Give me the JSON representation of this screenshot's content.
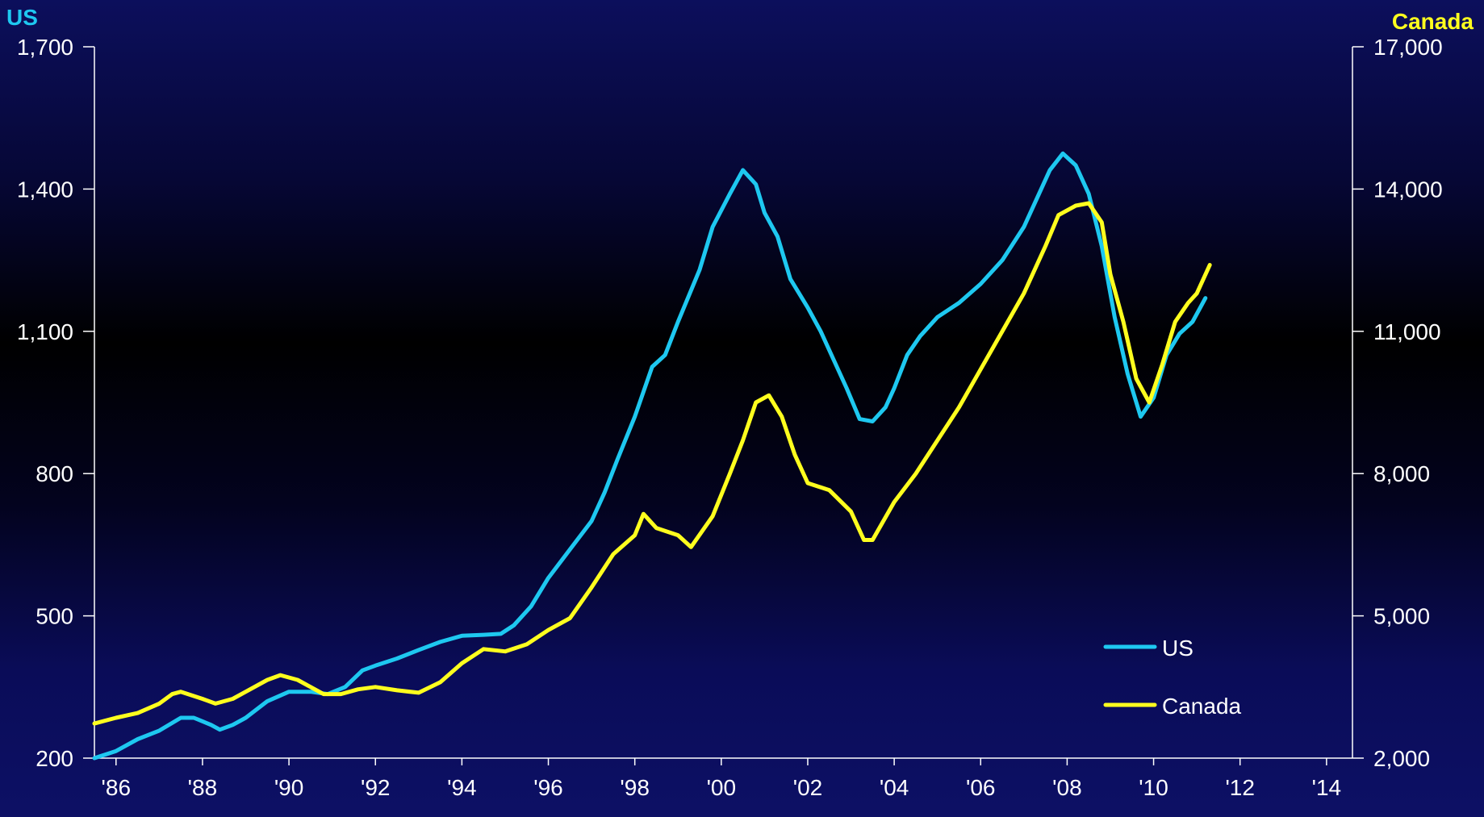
{
  "chart_data": {
    "type": "line",
    "left_axis_title": "US",
    "right_axis_title": "Canada",
    "left_ylim": [
      200,
      1700
    ],
    "left_yticks": [
      "1,700",
      "1,400",
      "1,100",
      "800",
      "500",
      "200"
    ],
    "left_ytick_values": [
      1700,
      1400,
      1100,
      800,
      500,
      200
    ],
    "right_ylim": [
      2000,
      17000
    ],
    "right_yticks": [
      "17,000",
      "14,000",
      "11,000",
      "8,000",
      "5,000",
      "2,000"
    ],
    "right_ytick_values": [
      17000,
      14000,
      11000,
      8000,
      5000,
      2000
    ],
    "xlim": [
      1985.5,
      2014.6
    ],
    "xtick_labels": [
      "'86",
      "'88",
      "'90",
      "'92",
      "'94",
      "'96",
      "'98",
      "'00",
      "'02",
      "'04",
      "'06",
      "'08",
      "'10",
      "'12",
      "'14"
    ],
    "xtick_values": [
      1986,
      1988,
      1990,
      1992,
      1994,
      1996,
      1998,
      2000,
      2002,
      2004,
      2006,
      2008,
      2010,
      2012,
      2014
    ],
    "legend_position": "bottom-right",
    "series": [
      {
        "name": "US",
        "axis": "left",
        "color": "#1ec8f0",
        "points": [
          [
            1985.5,
            200
          ],
          [
            1986.0,
            215
          ],
          [
            1986.5,
            240
          ],
          [
            1987.0,
            258
          ],
          [
            1987.5,
            285
          ],
          [
            1987.8,
            285
          ],
          [
            1988.2,
            270
          ],
          [
            1988.4,
            260
          ],
          [
            1988.7,
            270
          ],
          [
            1989.0,
            285
          ],
          [
            1989.5,
            320
          ],
          [
            1990.0,
            340
          ],
          [
            1990.5,
            340
          ],
          [
            1990.9,
            335
          ],
          [
            1991.3,
            350
          ],
          [
            1991.7,
            385
          ],
          [
            1992.0,
            395
          ],
          [
            1992.5,
            410
          ],
          [
            1993.0,
            428
          ],
          [
            1993.5,
            445
          ],
          [
            1994.0,
            458
          ],
          [
            1994.5,
            460
          ],
          [
            1994.9,
            462
          ],
          [
            1995.2,
            480
          ],
          [
            1995.6,
            520
          ],
          [
            1996.0,
            580
          ],
          [
            1996.5,
            640
          ],
          [
            1997.0,
            700
          ],
          [
            1997.3,
            760
          ],
          [
            1997.6,
            830
          ],
          [
            1998.0,
            920
          ],
          [
            1998.4,
            1025
          ],
          [
            1998.7,
            1050
          ],
          [
            1999.0,
            1120
          ],
          [
            1999.5,
            1230
          ],
          [
            1999.8,
            1320
          ],
          [
            2000.2,
            1390
          ],
          [
            2000.5,
            1440
          ],
          [
            2000.8,
            1410
          ],
          [
            2001.0,
            1350
          ],
          [
            2001.3,
            1300
          ],
          [
            2001.6,
            1210
          ],
          [
            2002.0,
            1150
          ],
          [
            2002.3,
            1100
          ],
          [
            2002.6,
            1040
          ],
          [
            2002.9,
            980
          ],
          [
            2003.2,
            915
          ],
          [
            2003.5,
            910
          ],
          [
            2003.8,
            940
          ],
          [
            2004.0,
            980
          ],
          [
            2004.3,
            1050
          ],
          [
            2004.6,
            1090
          ],
          [
            2005.0,
            1130
          ],
          [
            2005.5,
            1160
          ],
          [
            2006.0,
            1200
          ],
          [
            2006.5,
            1250
          ],
          [
            2007.0,
            1320
          ],
          [
            2007.3,
            1380
          ],
          [
            2007.6,
            1440
          ],
          [
            2007.9,
            1475
          ],
          [
            2008.2,
            1450
          ],
          [
            2008.5,
            1390
          ],
          [
            2008.8,
            1280
          ],
          [
            2009.1,
            1130
          ],
          [
            2009.4,
            1010
          ],
          [
            2009.7,
            920
          ],
          [
            2010.0,
            960
          ],
          [
            2010.3,
            1050
          ],
          [
            2010.6,
            1095
          ],
          [
            2010.9,
            1120
          ],
          [
            2011.2,
            1170
          ]
        ]
      },
      {
        "name": "Canada",
        "axis": "right",
        "color": "#ffff1e",
        "points": [
          [
            1985.5,
            2730
          ],
          [
            1986.0,
            2850
          ],
          [
            1986.5,
            2950
          ],
          [
            1987.0,
            3150
          ],
          [
            1987.3,
            3350
          ],
          [
            1987.5,
            3400
          ],
          [
            1988.0,
            3250
          ],
          [
            1988.3,
            3150
          ],
          [
            1988.7,
            3250
          ],
          [
            1989.0,
            3400
          ],
          [
            1989.5,
            3650
          ],
          [
            1989.8,
            3750
          ],
          [
            1990.2,
            3650
          ],
          [
            1990.5,
            3500
          ],
          [
            1990.8,
            3350
          ],
          [
            1991.2,
            3350
          ],
          [
            1991.6,
            3450
          ],
          [
            1992.0,
            3500
          ],
          [
            1992.5,
            3430
          ],
          [
            1993.0,
            3380
          ],
          [
            1993.5,
            3600
          ],
          [
            1994.0,
            4000
          ],
          [
            1994.5,
            4300
          ],
          [
            1995.0,
            4250
          ],
          [
            1995.5,
            4400
          ],
          [
            1996.0,
            4700
          ],
          [
            1996.5,
            4950
          ],
          [
            1997.0,
            5600
          ],
          [
            1997.5,
            6300
          ],
          [
            1998.0,
            6700
          ],
          [
            1998.2,
            7150
          ],
          [
            1998.5,
            6850
          ],
          [
            1999.0,
            6700
          ],
          [
            1999.3,
            6450
          ],
          [
            1999.8,
            7100
          ],
          [
            2000.2,
            8000
          ],
          [
            2000.5,
            8700
          ],
          [
            2000.8,
            9500
          ],
          [
            2001.1,
            9650
          ],
          [
            2001.4,
            9200
          ],
          [
            2001.7,
            8400
          ],
          [
            2002.0,
            7800
          ],
          [
            2002.5,
            7650
          ],
          [
            2003.0,
            7200
          ],
          [
            2003.3,
            6600
          ],
          [
            2003.5,
            6600
          ],
          [
            2004.0,
            7400
          ],
          [
            2004.5,
            8000
          ],
          [
            2005.0,
            8700
          ],
          [
            2005.5,
            9400
          ],
          [
            2006.0,
            10200
          ],
          [
            2006.5,
            11000
          ],
          [
            2007.0,
            11800
          ],
          [
            2007.5,
            12800
          ],
          [
            2007.8,
            13450
          ],
          [
            2008.2,
            13650
          ],
          [
            2008.5,
            13700
          ],
          [
            2008.8,
            13300
          ],
          [
            2009.0,
            12200
          ],
          [
            2009.3,
            11200
          ],
          [
            2009.6,
            10000
          ],
          [
            2009.9,
            9500
          ],
          [
            2010.2,
            10300
          ],
          [
            2010.5,
            11200
          ],
          [
            2010.8,
            11600
          ],
          [
            2011.0,
            11800
          ],
          [
            2011.3,
            12400
          ]
        ]
      }
    ]
  }
}
